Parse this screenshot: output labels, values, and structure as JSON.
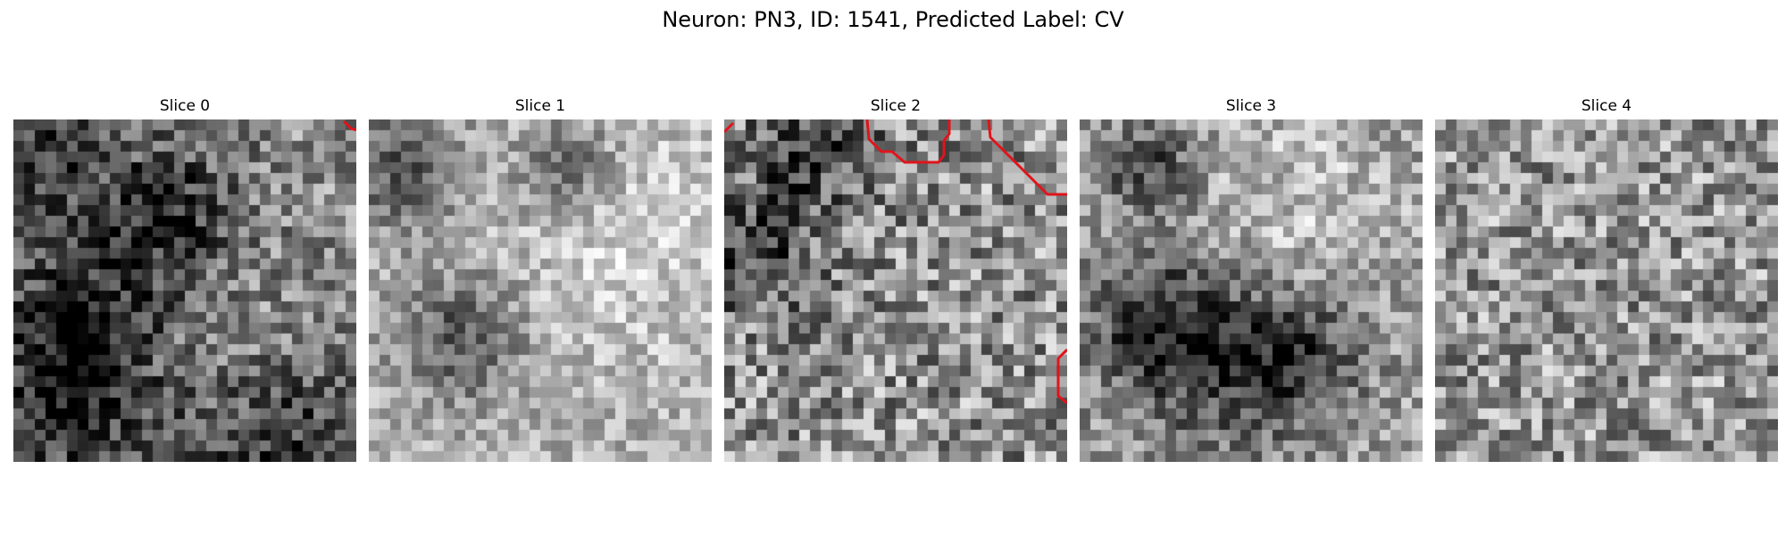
{
  "figure": {
    "title": "Neuron: PN3, ID: 1541, Predicted Label: CV"
  },
  "panels": [
    {
      "title": "Slice 0"
    },
    {
      "title": "Slice 1"
    },
    {
      "title": "Slice 2"
    },
    {
      "title": "Slice 3"
    },
    {
      "title": "Slice 4"
    }
  ],
  "colors": {
    "contour": "#e0141a",
    "colormap": "gray"
  }
}
